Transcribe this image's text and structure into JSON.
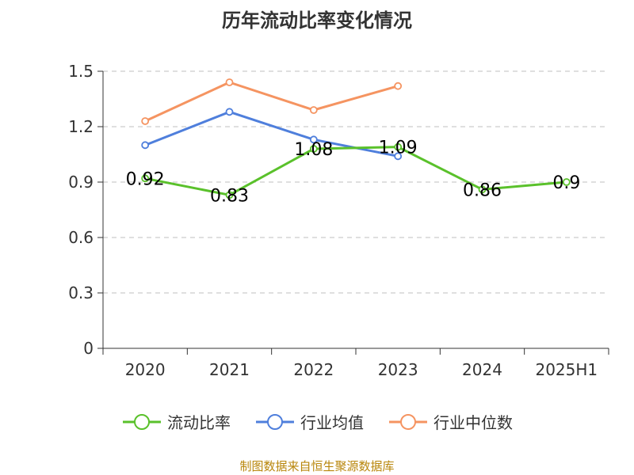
{
  "source_note": "制图数据来自恒生聚源数据库",
  "colors": {
    "axis": "#333333",
    "grid": "#cccccc"
  },
  "chart_data": {
    "type": "line",
    "title": "历年流动比率变化情况",
    "categories": [
      "2020",
      "2021",
      "2022",
      "2023",
      "2024",
      "2025H1"
    ],
    "ylim": [
      0,
      1.5
    ],
    "yticks": [
      0,
      0.3,
      0.6,
      0.9,
      1.2,
      1.5
    ],
    "ytick_labels": [
      "0",
      "0.3",
      "0.6",
      "0.9",
      "1.2",
      "1.5"
    ],
    "grid": true,
    "legend_position": "bottom-center",
    "series": [
      {
        "name": "流动比率",
        "color": "#5ac12b",
        "values": [
          0.92,
          0.83,
          1.08,
          1.09,
          0.86,
          0.9
        ],
        "labels": [
          "0.92",
          "0.83",
          "1.08",
          "1.09",
          "0.86",
          "0.9"
        ]
      },
      {
        "name": "行业均值",
        "color": "#4f7fdc",
        "values": [
          1.1,
          1.28,
          1.13,
          1.04,
          null,
          null
        ]
      },
      {
        "name": "行业中位数",
        "color": "#f59461",
        "values": [
          1.23,
          1.44,
          1.29,
          1.42,
          null,
          null
        ]
      }
    ]
  }
}
